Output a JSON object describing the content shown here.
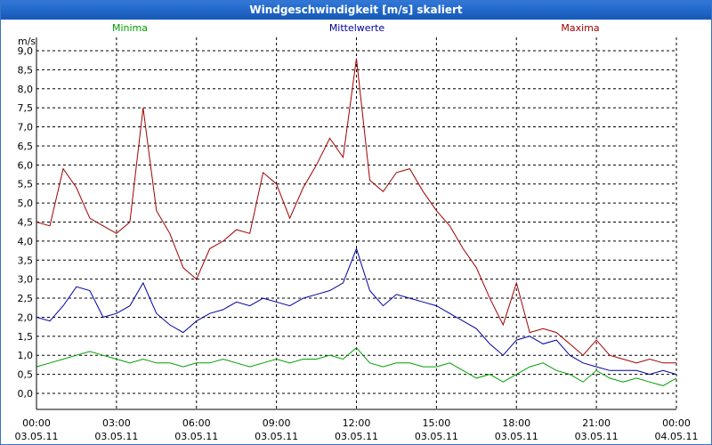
{
  "window": {
    "title": "Windgeschwindigkeit [m/s] skaliert"
  },
  "chart_data": {
    "type": "line",
    "title": "Windgeschwindigkeit [m/s] skaliert",
    "ylabel": "m/s",
    "ylim": [
      0,
      9.2
    ],
    "xlim": [
      0,
      24
    ],
    "grid": true,
    "y_ticks": [
      {
        "v": 0.0,
        "label": "0,0"
      },
      {
        "v": 0.5,
        "label": "0,5"
      },
      {
        "v": 1.0,
        "label": "1,0"
      },
      {
        "v": 1.5,
        "label": "1,5"
      },
      {
        "v": 2.0,
        "label": "2,0"
      },
      {
        "v": 2.5,
        "label": "2,5"
      },
      {
        "v": 3.0,
        "label": "3,0"
      },
      {
        "v": 3.5,
        "label": "3,5"
      },
      {
        "v": 4.0,
        "label": "4,0"
      },
      {
        "v": 4.5,
        "label": "4,5"
      },
      {
        "v": 5.0,
        "label": "5,0"
      },
      {
        "v": 5.5,
        "label": "5,5"
      },
      {
        "v": 6.0,
        "label": "6,0"
      },
      {
        "v": 6.5,
        "label": "6,5"
      },
      {
        "v": 7.0,
        "label": "7,0"
      },
      {
        "v": 7.5,
        "label": "7,5"
      },
      {
        "v": 8.0,
        "label": "8,0"
      },
      {
        "v": 8.5,
        "label": "8,5"
      },
      {
        "v": 9.0,
        "label": "9,0"
      }
    ],
    "x_ticks": [
      {
        "h": 0,
        "time": "00:00",
        "date": "03.05.11"
      },
      {
        "h": 3,
        "time": "03:00",
        "date": "03.05.11"
      },
      {
        "h": 6,
        "time": "06:00",
        "date": "03.05.11"
      },
      {
        "h": 9,
        "time": "09:00",
        "date": "03.05.11"
      },
      {
        "h": 12,
        "time": "12:00",
        "date": "03.05.11"
      },
      {
        "h": 15,
        "time": "15:00",
        "date": "03.05.11"
      },
      {
        "h": 18,
        "time": "18:00",
        "date": "03.05.11"
      },
      {
        "h": 21,
        "time": "21:00",
        "date": "03.05.11"
      },
      {
        "h": 24,
        "time": "00:00",
        "date": "04.05.11"
      }
    ],
    "series": [
      {
        "name": "Minima",
        "color": "#00a000",
        "legend_pos": "left",
        "x": [
          0,
          0.5,
          1,
          1.5,
          2,
          2.5,
          3,
          3.5,
          4,
          4.5,
          5,
          5.5,
          6,
          6.5,
          7,
          7.5,
          8,
          8.5,
          9,
          9.5,
          10,
          10.5,
          11,
          11.5,
          12,
          12.5,
          13,
          13.5,
          14,
          14.5,
          15,
          15.5,
          16,
          16.5,
          17,
          17.5,
          18,
          18.5,
          19,
          19.5,
          20,
          20.5,
          21,
          21.5,
          22,
          22.5,
          23,
          23.5,
          24
        ],
        "values": [
          0.7,
          0.8,
          0.9,
          1.0,
          1.1,
          1.0,
          0.9,
          0.8,
          0.9,
          0.8,
          0.8,
          0.7,
          0.8,
          0.8,
          0.9,
          0.8,
          0.7,
          0.8,
          0.9,
          0.8,
          0.9,
          0.9,
          1.0,
          0.9,
          1.2,
          0.8,
          0.7,
          0.8,
          0.8,
          0.7,
          0.7,
          0.8,
          0.6,
          0.4,
          0.5,
          0.3,
          0.5,
          0.7,
          0.8,
          0.6,
          0.5,
          0.3,
          0.6,
          0.4,
          0.3,
          0.4,
          0.3,
          0.2,
          0.4
        ]
      },
      {
        "name": "Mittelwerte",
        "color": "#0000a0",
        "legend_pos": "center",
        "x": [
          0,
          0.5,
          1,
          1.5,
          2,
          2.5,
          3,
          3.5,
          4,
          4.5,
          5,
          5.5,
          6,
          6.5,
          7,
          7.5,
          8,
          8.5,
          9,
          9.5,
          10,
          10.5,
          11,
          11.5,
          12,
          12.5,
          13,
          13.5,
          14,
          14.5,
          15,
          15.5,
          16,
          16.5,
          17,
          17.5,
          18,
          18.5,
          19,
          19.5,
          20,
          20.5,
          21,
          21.5,
          22,
          22.5,
          23,
          23.5,
          24
        ],
        "values": [
          2.0,
          1.9,
          2.3,
          2.8,
          2.7,
          2.0,
          2.1,
          2.3,
          2.9,
          2.1,
          1.8,
          1.6,
          1.9,
          2.1,
          2.2,
          2.4,
          2.3,
          2.5,
          2.4,
          2.3,
          2.5,
          2.6,
          2.7,
          2.9,
          3.8,
          2.7,
          2.3,
          2.6,
          2.5,
          2.4,
          2.3,
          2.1,
          1.9,
          1.7,
          1.3,
          1.0,
          1.4,
          1.5,
          1.3,
          1.4,
          1.0,
          0.8,
          0.7,
          0.6,
          0.6,
          0.6,
          0.5,
          0.6,
          0.5
        ]
      },
      {
        "name": "Maxima",
        "color": "#a00000",
        "legend_pos": "right",
        "x": [
          0,
          0.5,
          1,
          1.5,
          2,
          2.5,
          3,
          3.5,
          4,
          4.5,
          5,
          5.5,
          6,
          6.5,
          7,
          7.5,
          8,
          8.5,
          9,
          9.5,
          10,
          10.5,
          11,
          11.5,
          12,
          12.5,
          13,
          13.5,
          14,
          14.5,
          15,
          15.5,
          16,
          16.5,
          17,
          17.5,
          18,
          18.5,
          19,
          19.5,
          20,
          20.5,
          21,
          21.5,
          22,
          22.5,
          23,
          23.5,
          24
        ],
        "values": [
          4.5,
          4.4,
          5.9,
          5.4,
          4.6,
          4.4,
          4.2,
          4.5,
          7.5,
          4.8,
          4.2,
          3.3,
          3.0,
          3.8,
          4.0,
          4.3,
          4.2,
          5.8,
          5.5,
          4.6,
          5.4,
          6.0,
          6.7,
          6.2,
          8.8,
          5.6,
          5.3,
          5.8,
          5.9,
          5.3,
          4.8,
          4.4,
          3.8,
          3.3,
          2.5,
          1.8,
          2.9,
          1.6,
          1.7,
          1.6,
          1.3,
          1.0,
          1.4,
          1.0,
          0.9,
          0.8,
          0.9,
          0.8,
          0.8
        ]
      }
    ]
  }
}
